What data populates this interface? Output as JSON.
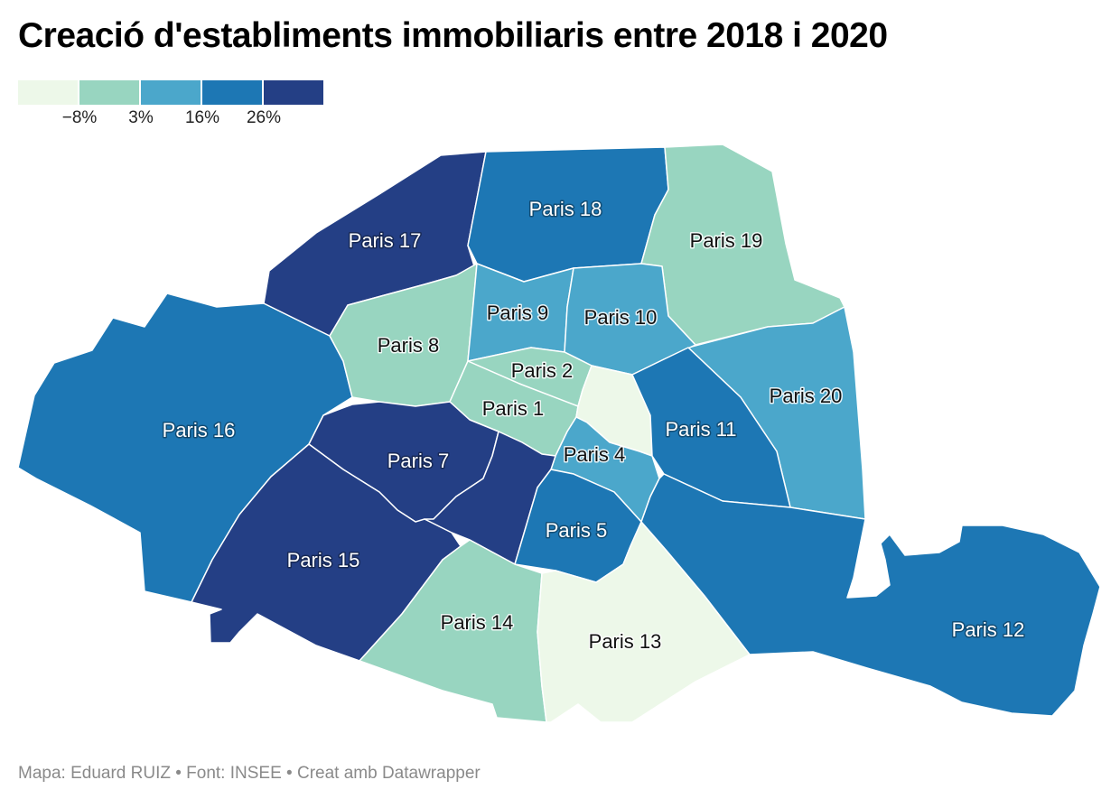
{
  "title": "Creació d'establiments immobiliaris entre 2018 i 2020",
  "legend": {
    "colors": [
      "#edf8e9",
      "#98d5c0",
      "#4ba7cb",
      "#1d77b4",
      "#243f85"
    ],
    "labels": [
      "−8%",
      "3%",
      "16%",
      "26%"
    ]
  },
  "districts": [
    {
      "name": "Paris 1",
      "label": "Paris 1",
      "class_index": 1
    },
    {
      "name": "Paris 2",
      "label": "Paris 2",
      "class_index": 1
    },
    {
      "name": "Paris 3",
      "label": "",
      "class_index": 0
    },
    {
      "name": "Paris 4",
      "label": "Paris 4",
      "class_index": 2
    },
    {
      "name": "Paris 5",
      "label": "Paris 5",
      "class_index": 3
    },
    {
      "name": "Paris 6",
      "label": "",
      "class_index": 4
    },
    {
      "name": "Paris 7",
      "label": "Paris 7",
      "class_index": 4
    },
    {
      "name": "Paris 8",
      "label": "Paris 8",
      "class_index": 1
    },
    {
      "name": "Paris 9",
      "label": "Paris 9",
      "class_index": 2
    },
    {
      "name": "Paris 10",
      "label": "Paris 10",
      "class_index": 2
    },
    {
      "name": "Paris 11",
      "label": "Paris 11",
      "class_index": 3
    },
    {
      "name": "Paris 12",
      "label": "Paris 12",
      "class_index": 3
    },
    {
      "name": "Paris 13",
      "label": "Paris 13",
      "class_index": 0
    },
    {
      "name": "Paris 14",
      "label": "Paris 14",
      "class_index": 1
    },
    {
      "name": "Paris 15",
      "label": "Paris 15",
      "class_index": 4
    },
    {
      "name": "Paris 16",
      "label": "Paris 16",
      "class_index": 3
    },
    {
      "name": "Paris 17",
      "label": "Paris 17",
      "class_index": 4
    },
    {
      "name": "Paris 18",
      "label": "Paris 18",
      "class_index": 3
    },
    {
      "name": "Paris 19",
      "label": "Paris 19",
      "class_index": 1
    },
    {
      "name": "Paris 20",
      "label": "Paris 20",
      "class_index": 2
    }
  ],
  "footer": "Mapa: Eduard RUIZ • Font: INSEE • Creat amb Datawrapper"
}
